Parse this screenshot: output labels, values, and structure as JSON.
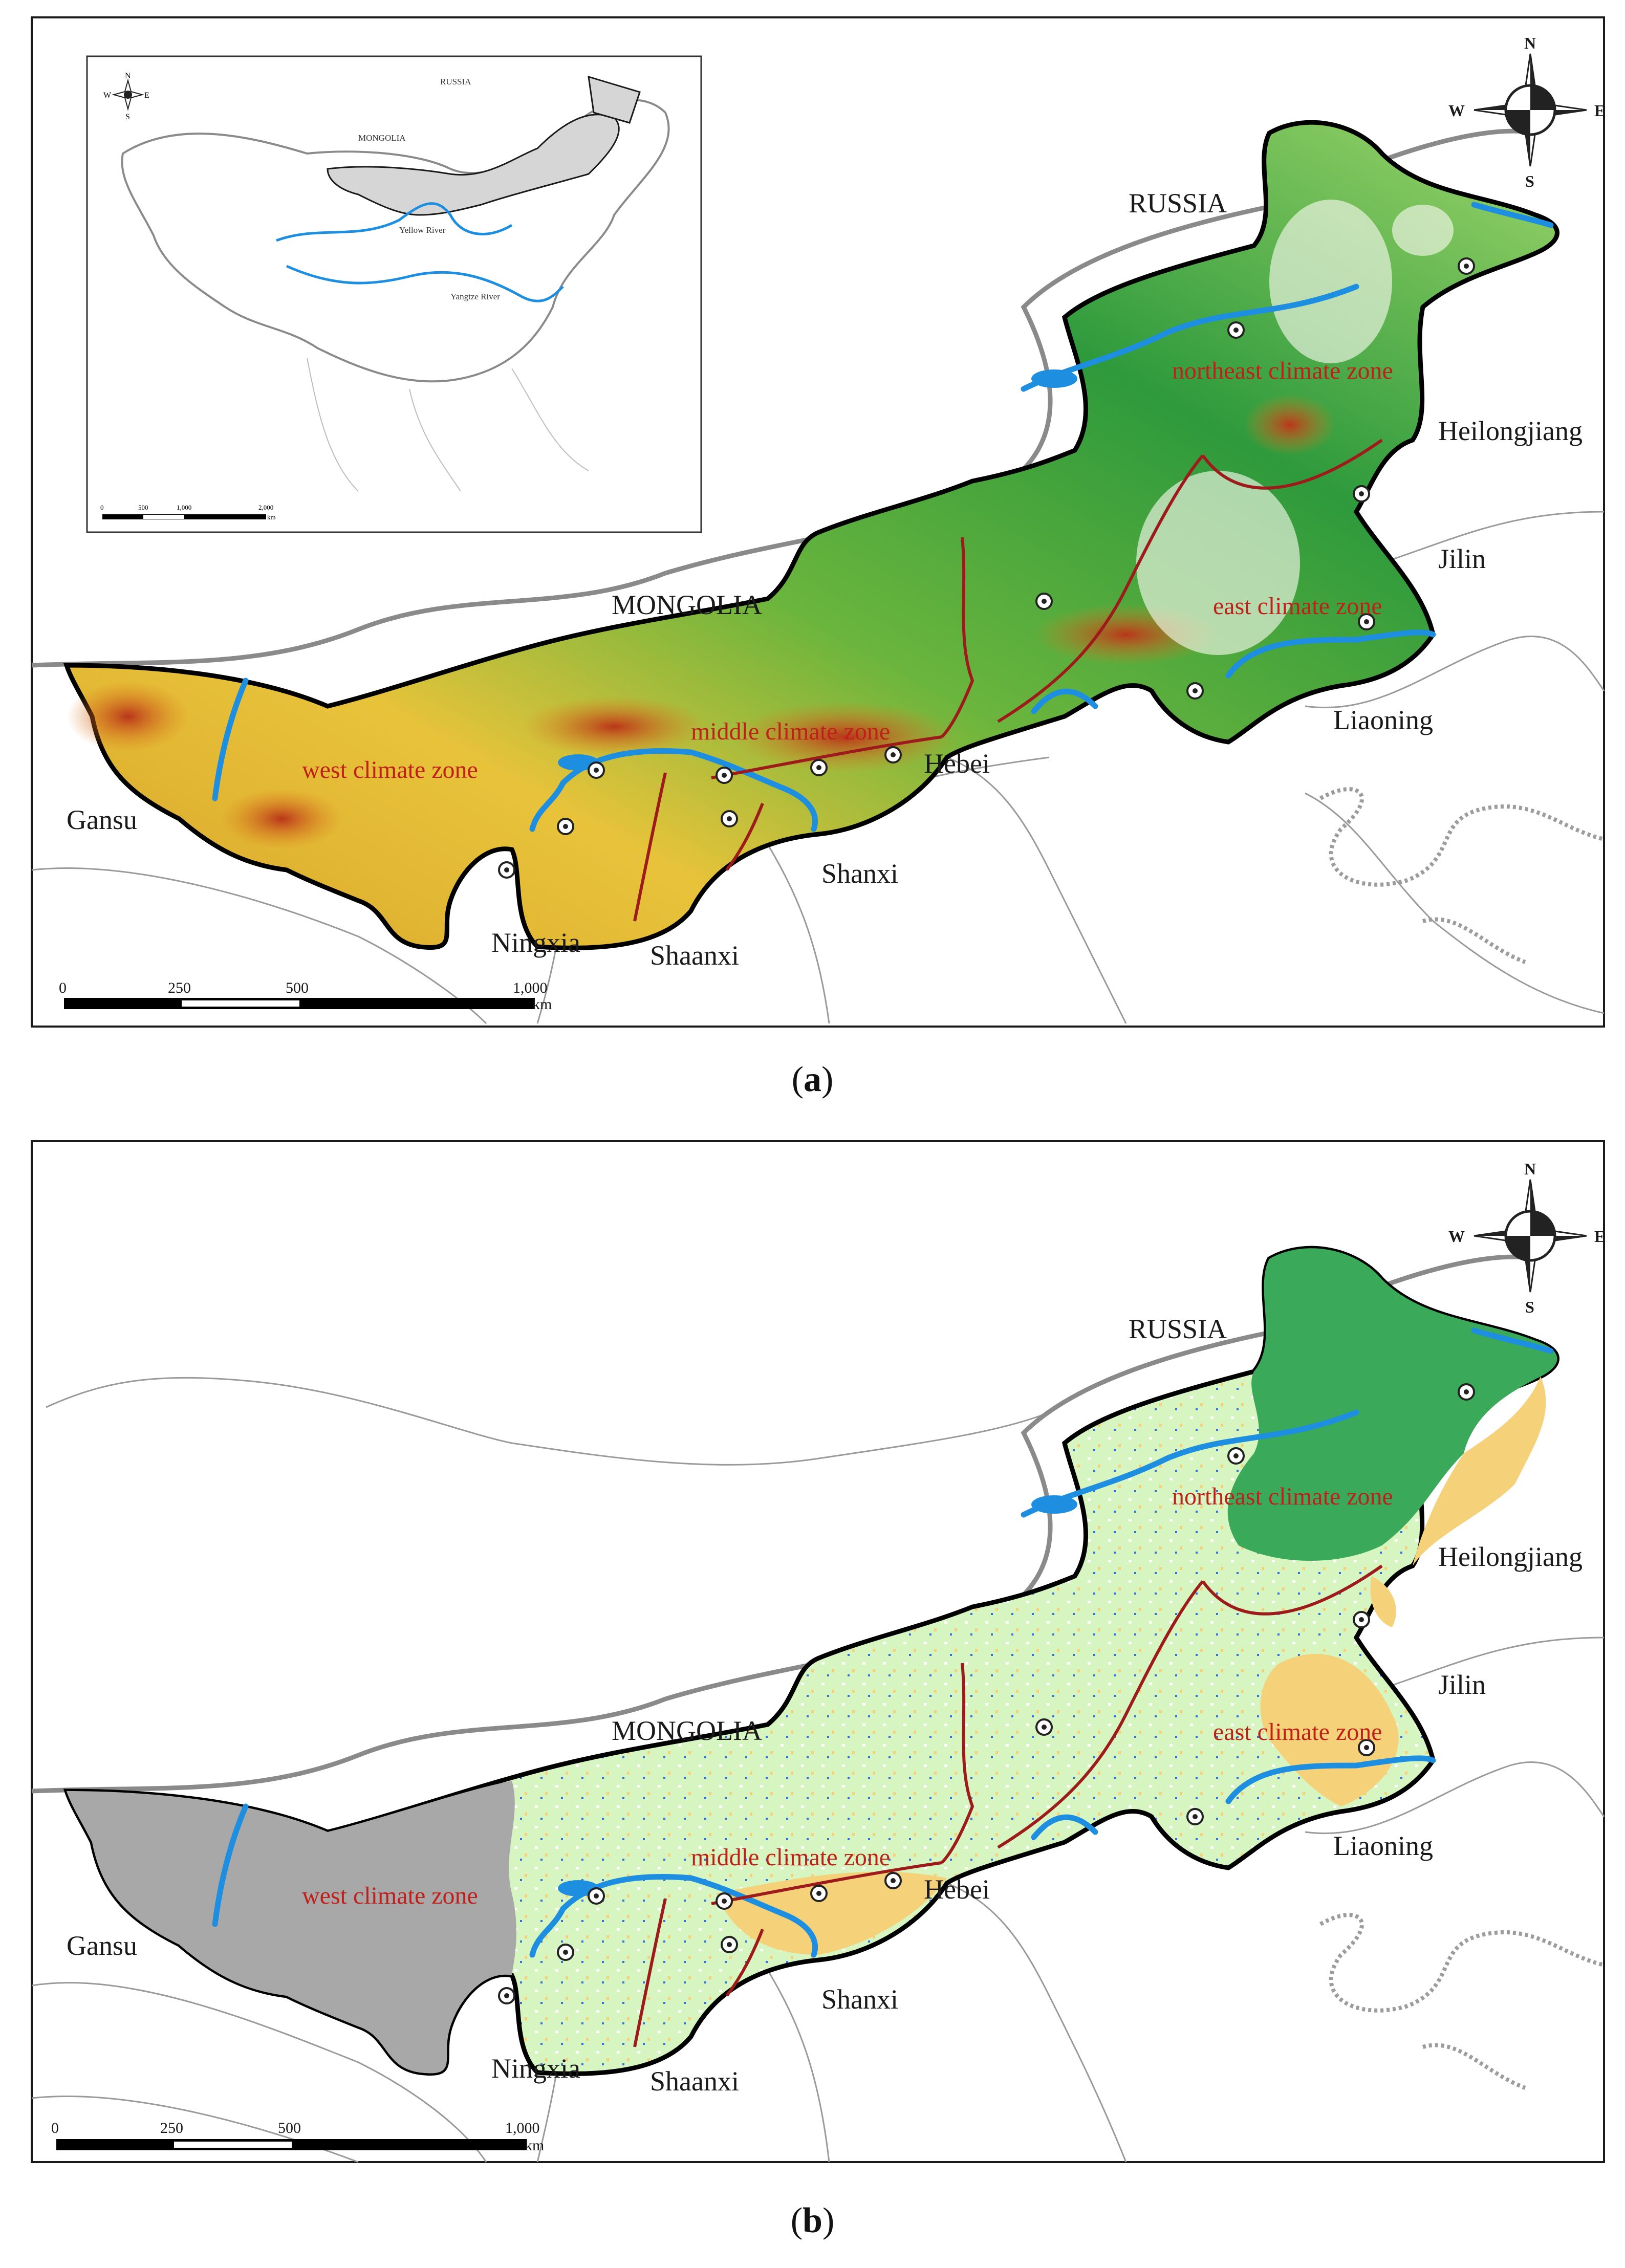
{
  "panels": [
    {
      "id": "a",
      "caption_letter": "a",
      "countries": [
        "RUSSIA",
        "MONGOLIA"
      ],
      "provinces": [
        "Heilongjiang",
        "Jilin",
        "Liaoning",
        "Hebei",
        "Shanxi",
        "Shaanxi",
        "Ningxia",
        "Gansu"
      ],
      "climate_zones": [
        "northeast climate zone",
        "east climate zone",
        "middle climate zone",
        "west climate zone"
      ],
      "inset": {
        "labels": [
          "RUSSIA",
          "MONGOLIA",
          "Yellow River",
          "Yangtze River"
        ],
        "scale_ticks": [
          "0",
          "500",
          "1,000",
          "2,000"
        ],
        "scale_unit": "km"
      },
      "scale_ticks": [
        "0",
        "250",
        "500",
        "1,000"
      ],
      "scale_unit": "km",
      "compass": {
        "n": "N",
        "s": "S",
        "e": "E",
        "w": "W"
      }
    },
    {
      "id": "b",
      "caption_letter": "b",
      "countries": [
        "RUSSIA",
        "MONGOLIA"
      ],
      "provinces": [
        "Heilongjiang",
        "Jilin",
        "Liaoning",
        "Hebei",
        "Shanxi",
        "Shaanxi",
        "Ningxia",
        "Gansu"
      ],
      "climate_zones": [
        "northeast climate zone",
        "east climate zone",
        "middle climate zone",
        "west climate zone"
      ],
      "scale_ticks": [
        "0",
        "250",
        "500",
        "1,000"
      ],
      "scale_unit": "km",
      "compass": {
        "n": "N",
        "s": "S",
        "e": "E",
        "w": "W"
      }
    }
  ],
  "colors": {
    "zone_boundary": "#9e1b1b",
    "river": "#1e8fe0",
    "elevation_low": "#2e9a3c",
    "elevation_mid": "#e8c33a",
    "elevation_high": "#c0501a",
    "landcover_forest": "#3aa95a",
    "landcover_grass": "#d6f5c0",
    "landcover_crop": "#f5d27a",
    "landcover_barren": "#a8a8a8"
  }
}
